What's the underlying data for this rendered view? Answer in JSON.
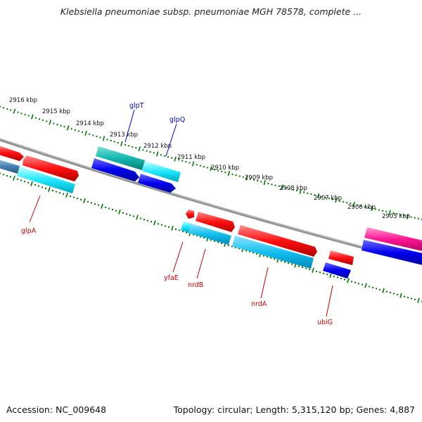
{
  "title": "Klebsiella pneumoniae subsp. pneumoniae MGH 78578, complete ...",
  "footer": {
    "accession": "Accession: NC_009648",
    "summary": "Topology: circular; Length: 5,315,120 bp; Genes: 4,887"
  },
  "scale_labels": [
    "2916 kbp",
    "2915 kbp",
    "2914 kbp",
    "2913 kbp",
    "2912 kbp",
    "2911 kbp",
    "2910 kbp",
    "2909 kbp",
    "2908 kbp",
    "2907 kbp",
    "2906 kbp",
    "2905 kbp"
  ],
  "gene_labels": {
    "glpT": "glpT",
    "glpQ": "glpQ",
    "glpA": "glpA",
    "yfaE": "yfaE",
    "nrdB": "nrdB",
    "nrdA": "nrdA",
    "ubiG": "ubiG"
  },
  "colors": {
    "cds": "#ff0000",
    "blast_blue": "#0000ee",
    "blast_cyan": "#00e5ff",
    "teal": "#14b8b0",
    "magenta": "#ff1493",
    "steel": "#4682b4",
    "backbone": "#808080",
    "ticks": "#007700",
    "label_blue": "#0000cc",
    "label_red": "#cc0000"
  }
}
